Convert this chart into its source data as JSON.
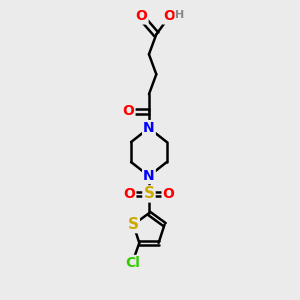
{
  "background_color": "#ebebeb",
  "bond_color": "#000000",
  "bond_width": 1.8,
  "atom_colors": {
    "O": "#ff0000",
    "N": "#0000ff",
    "S_sulfonyl": "#ccaa00",
    "S_thio": "#ccaa00",
    "Cl": "#33cc00",
    "H": "#888888",
    "C": "#000000"
  },
  "font_size": 9,
  "figsize": [
    3.0,
    3.0
  ],
  "dpi": 100,
  "xlim": [
    0,
    10
  ],
  "ylim": [
    0,
    14
  ]
}
